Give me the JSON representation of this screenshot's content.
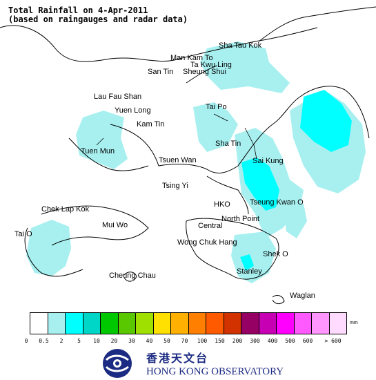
{
  "title": {
    "line1": "Total Rainfall on 4-Apr-2011",
    "line2": "(based on raingauges and radar data)"
  },
  "places": [
    {
      "id": "sha-tau-kok",
      "label": "Sha Tau Kok"
    },
    {
      "id": "man-kam-to",
      "label": "Man Kam To"
    },
    {
      "id": "ta-kwu-ling",
      "label": "Ta Kwu Ling"
    },
    {
      "id": "san-tin",
      "label": "San Tin"
    },
    {
      "id": "sheung-shui",
      "label": "Sheung Shui"
    },
    {
      "id": "lau-fau-shan",
      "label": "Lau Fau Shan"
    },
    {
      "id": "yuen-long",
      "label": "Yuen Long"
    },
    {
      "id": "tai-po",
      "label": "Tai Po"
    },
    {
      "id": "kam-tin",
      "label": "Kam Tin"
    },
    {
      "id": "tuen-mun",
      "label": "Tuen Mun"
    },
    {
      "id": "sha-tin",
      "label": "Sha Tin"
    },
    {
      "id": "tsuen-wan",
      "label": "Tsuen Wan"
    },
    {
      "id": "sai-kung",
      "label": "Sai Kung"
    },
    {
      "id": "tsing-yi",
      "label": "Tsing Yi"
    },
    {
      "id": "chek-lap-kok",
      "label": "Chek Lap Kok"
    },
    {
      "id": "hko",
      "label": "HKO"
    },
    {
      "id": "tseung-kwan-o",
      "label": "Tseung Kwan O"
    },
    {
      "id": "mui-wo",
      "label": "Mui Wo"
    },
    {
      "id": "north-point",
      "label": "North Point"
    },
    {
      "id": "central",
      "label": "Central"
    },
    {
      "id": "tai-o",
      "label": "Tai O"
    },
    {
      "id": "wong-chuk-hang",
      "label": "Wong Chuk Hang"
    },
    {
      "id": "shek-o",
      "label": "Shek O"
    },
    {
      "id": "cheung-chau",
      "label": "Cheung Chau"
    },
    {
      "id": "stanley",
      "label": "Stanley"
    },
    {
      "id": "waglan",
      "label": "Waglan"
    }
  ],
  "legend": {
    "unit": "mm",
    "colors": [
      "#ffffff",
      "#a8f0f0",
      "#00ffff",
      "#00d6c8",
      "#00c800",
      "#5ac800",
      "#a0e000",
      "#ffe000",
      "#ffb000",
      "#ff8000",
      "#ff5a00",
      "#d23200",
      "#960064",
      "#c800b4",
      "#ff00ff",
      "#ff5aff",
      "#ff96ff",
      "#ffdcff"
    ],
    "ticks": [
      "0",
      "0.5",
      "2",
      "5",
      "10",
      "20",
      "30",
      "40",
      "50",
      "70",
      "100",
      "150",
      "200",
      "300",
      "400",
      "500",
      "600",
      "> 600"
    ]
  },
  "logo": {
    "chinese": "香港天文台",
    "english": "HONG KONG OBSERVATORY"
  }
}
